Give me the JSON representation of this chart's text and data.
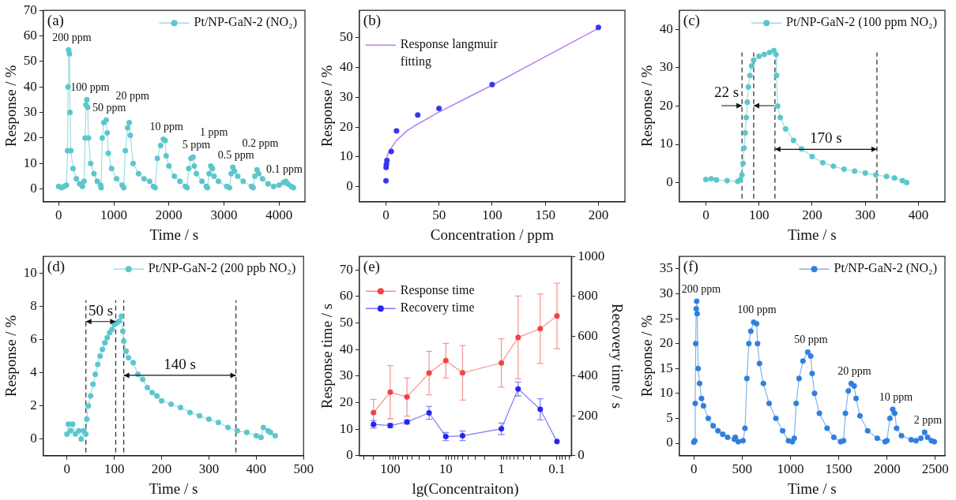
{
  "chart_data": [
    {
      "type": "line",
      "title": "(a)",
      "xlabel": "Time / s",
      "ylabel": "Response / %",
      "xlim": [
        -280,
        4470
      ],
      "ylim": [
        -5,
        70
      ],
      "xticks": [
        0,
        1000,
        2000,
        3000,
        4000
      ],
      "yticks": [
        0,
        10,
        20,
        30,
        40,
        50,
        60,
        70
      ],
      "legend": "top right",
      "marker": "circle",
      "line_style": "solid",
      "series": [
        {
          "name": "Pt/NP-GaN-2 (NO₂)",
          "color": "#5cc6cc",
          "x": [
            0,
            50,
            100,
            140,
            160,
            170,
            180,
            195,
            205,
            220,
            260,
            320,
            380,
            430,
            460,
            480,
            495,
            510,
            525,
            540,
            580,
            640,
            700,
            760,
            770,
            790,
            820,
            860,
            880,
            900,
            960,
            1050,
            1150,
            1180,
            1210,
            1250,
            1280,
            1300,
            1350,
            1450,
            1550,
            1650,
            1720,
            1750,
            1790,
            1850,
            1900,
            1930,
            1950,
            2000,
            2100,
            2200,
            2300,
            2330,
            2360,
            2400,
            2440,
            2460,
            2500,
            2600,
            2680,
            2700,
            2730,
            2760,
            2790,
            2820,
            2900,
            3050,
            3100,
            3130,
            3160,
            3190,
            3250,
            3350,
            3500,
            3530,
            3560,
            3600,
            3630,
            3700,
            3800,
            3900,
            4000,
            4080,
            4120,
            4160,
            4220,
            4260
          ],
          "values": [
            1,
            0.5,
            1,
            1.5,
            15,
            40,
            54.5,
            53,
            30,
            15,
            8,
            4,
            2,
            1,
            3,
            20,
            33,
            35,
            32,
            20,
            10,
            6,
            3,
            1.5,
            0.5,
            20,
            26,
            27,
            22,
            14,
            8,
            4,
            1.5,
            0.5,
            15,
            24,
            26,
            21,
            10,
            6,
            4,
            3,
            1,
            0.5,
            12,
            17,
            19.5,
            19,
            13,
            9,
            5,
            3,
            1,
            0.5,
            8,
            12,
            12.5,
            9,
            6,
            3,
            1,
            0.5,
            6,
            9,
            8,
            5,
            3,
            1,
            0.5,
            6,
            8.5,
            7,
            5,
            3,
            1,
            0.5,
            5,
            7.5,
            6,
            4,
            2,
            1,
            1.5,
            2.5,
            3,
            2,
            1,
            0.5
          ]
        }
      ],
      "annotations": [
        {
          "text": "200 ppm",
          "x": 180,
          "y": 54.5
        },
        {
          "text": "100 ppm",
          "x": 510,
          "y": 35
        },
        {
          "text": "50 ppm",
          "x": 860,
          "y": 27
        },
        {
          "text": "20 ppm",
          "x": 1280,
          "y": 26
        },
        {
          "text": "10 ppm",
          "x": 1900,
          "y": 19.5
        },
        {
          "text": "5 ppm",
          "x": 2440,
          "y": 12.5
        },
        {
          "text": "1 ppm",
          "x": 2760,
          "y": 9
        },
        {
          "text": "0.5 ppm",
          "x": 3160,
          "y": 8.5
        },
        {
          "text": "0.2 ppm",
          "x": 3600,
          "y": 7.5
        },
        {
          "text": "0.1 ppm",
          "x": 4120,
          "y": 3
        }
      ]
    },
    {
      "type": "scatter",
      "title": "(b)",
      "xlabel": "Concentration / ppm",
      "ylabel": "Response / %",
      "xlim": [
        -25,
        225
      ],
      "ylim": [
        -5,
        59
      ],
      "xticks": [
        0,
        50,
        100,
        150,
        200
      ],
      "yticks": [
        0,
        10,
        20,
        30,
        40,
        50
      ],
      "legend": "top left",
      "marker": "circle",
      "series": [
        {
          "color": "#3535f0",
          "x": [
            0.1,
            0.2,
            0.5,
            1,
            5,
            10,
            30,
            50,
            100,
            200
          ],
          "values": [
            2,
            6.5,
            7.5,
            8.8,
            11.8,
            18.7,
            24,
            26.2,
            34.2,
            53.3
          ]
        },
        {
          "name": "Response langmuir fitting",
          "type": "line",
          "marker": "none",
          "color": "#b87ef5",
          "x": [
            1,
            2,
            5,
            10,
            20,
            30,
            50,
            75,
            100,
            150,
            200
          ],
          "values": [
            9.8,
            11.2,
            13,
            15.5,
            18.8,
            21,
            25,
            29.5,
            34,
            43.5,
            53
          ]
        }
      ]
    },
    {
      "type": "line",
      "title": "(c)",
      "xlabel": "Time / s",
      "ylabel": "Response / %",
      "xlim": [
        -50,
        450
      ],
      "ylim": [
        -5,
        45
      ],
      "xticks": [
        0,
        100,
        200,
        300,
        400
      ],
      "yticks": [
        0,
        10,
        20,
        30,
        40
      ],
      "legend": "top right",
      "marker": "circle",
      "line_style": "solid",
      "series": [
        {
          "name": "Pt/NP-GaN-2 (100 ppm NO₂)",
          "color": "#5cc6cc",
          "x": [
            0,
            10,
            20,
            40,
            60,
            65,
            68,
            70,
            72,
            74,
            76,
            78,
            80,
            83,
            86,
            90,
            100,
            110,
            120,
            128,
            132,
            133,
            135,
            140,
            150,
            165,
            180,
            200,
            220,
            240,
            260,
            280,
            300,
            320,
            340,
            355,
            370,
            378
          ],
          "values": [
            0.8,
            1,
            0.7,
            0.5,
            0.3,
            0.8,
            2,
            5,
            9,
            13,
            17,
            21,
            25,
            28,
            30.5,
            32,
            33,
            33.5,
            34,
            34.5,
            33.5,
            28,
            20,
            17,
            14,
            11,
            8.8,
            6.8,
            5.2,
            4.3,
            3.5,
            3,
            2.5,
            2,
            1.6,
            1.2,
            0.5,
            0
          ]
        }
      ],
      "ref_lines": [
        {
          "axis": "x",
          "value": 68,
          "line_style": "dashed",
          "color": "#333333"
        },
        {
          "axis": "x",
          "value": 90,
          "line_style": "dashed",
          "color": "#333333"
        },
        {
          "axis": "x",
          "value": 130,
          "line_style": "dashed",
          "color": "#333333"
        },
        {
          "axis": "x",
          "value": 322,
          "line_style": "dashed",
          "color": "#333333"
        }
      ],
      "annotations": [
        {
          "text": "22 s",
          "x": 68,
          "y": 20.1
        },
        {
          "text": "170 s",
          "x": 130,
          "y": 8.7
        }
      ]
    },
    {
      "type": "line",
      "title": "(d)",
      "xlabel": "Time / s",
      "ylabel": "Response / %",
      "xlim": [
        -50,
        500
      ],
      "ylim": [
        -1,
        11
      ],
      "xticks": [
        0,
        100,
        200,
        300,
        400,
        500
      ],
      "yticks": [
        0,
        2,
        4,
        6,
        8,
        10
      ],
      "legend": "top right",
      "marker": "circle",
      "line_style": "solid",
      "series": [
        {
          "name": "Pt/NP-GaN-2 (200 ppb NO₂)",
          "color": "#5cc6cc",
          "x": [
            0,
            3,
            8,
            12,
            18,
            25,
            30,
            35,
            40,
            42,
            45,
            50,
            55,
            60,
            65,
            70,
            75,
            80,
            85,
            90,
            95,
            100,
            105,
            110,
            115,
            118,
            120,
            125,
            130,
            140,
            150,
            160,
            170,
            180,
            190,
            200,
            220,
            240,
            260,
            280,
            300,
            320,
            340,
            360,
            380,
            400,
            410,
            415,
            425,
            430,
            440
          ],
          "values": [
            0.3,
            0.9,
            0.5,
            0.9,
            0.3,
            0.5,
            0,
            0.5,
            0.3,
            1.2,
            2,
            2.6,
            3.3,
            3.9,
            4.5,
            5,
            5.4,
            5.8,
            6.1,
            6.4,
            6.6,
            6.9,
            7,
            7.1,
            7.4,
            6.5,
            5.9,
            5.3,
            4.9,
            4.6,
            3.9,
            3.6,
            3.1,
            2.8,
            2.6,
            2.3,
            2.1,
            1.9,
            1.6,
            1.4,
            1.2,
            1,
            0.7,
            0.5,
            0.4,
            0.2,
            0.1,
            0.7,
            0.5,
            0.4,
            0.2
          ]
        }
      ],
      "ref_lines": [
        {
          "axis": "x",
          "value": 40,
          "line_style": "dashed",
          "color": "#333333"
        },
        {
          "axis": "x",
          "value": 103,
          "line_style": "dashed",
          "color": "#333333"
        },
        {
          "axis": "x",
          "value": 120,
          "line_style": "dashed",
          "color": "#333333"
        },
        {
          "axis": "x",
          "value": 357,
          "line_style": "dashed",
          "color": "#333333"
        }
      ],
      "annotations": [
        {
          "text": "50 s",
          "x": 40,
          "y": 7.08
        },
        {
          "text": "140 s",
          "x": 120,
          "y": 3.84
        }
      ]
    },
    {
      "type": "line",
      "title": "(e)",
      "xlabel": "lg(Concentraiton)",
      "ylabel": "Response time / s",
      "y2label": "Recovery time / s",
      "log": "x",
      "xlim": [
        360,
        0.055
      ],
      "ylim": [
        0,
        75
      ],
      "y2lim": [
        0,
        1000
      ],
      "xticks": [
        {
          "value": 300,
          "label": null
        },
        {
          "value": 200,
          "label": null
        },
        100,
        {
          "value": 90,
          "label": null
        },
        {
          "value": 80,
          "label": null
        },
        {
          "value": 70,
          "label": null
        },
        {
          "value": 60,
          "label": null
        },
        {
          "value": 50,
          "label": null
        },
        {
          "value": 40,
          "label": null
        },
        {
          "value": 30,
          "label": null
        },
        {
          "value": 20,
          "label": null
        },
        10,
        {
          "value": 9,
          "label": null
        },
        {
          "value": 8,
          "label": null
        },
        {
          "value": 7,
          "label": null
        },
        {
          "value": 6,
          "label": null
        },
        {
          "value": 5,
          "label": null
        },
        {
          "value": 4,
          "label": null
        },
        {
          "value": 3,
          "label": null
        },
        {
          "value": 2,
          "label": null
        },
        1,
        {
          "value": 0.9,
          "label": null
        },
        {
          "value": 0.8,
          "label": null
        },
        {
          "value": 0.7,
          "label": null
        },
        {
          "value": 0.6,
          "label": null
        },
        {
          "value": 0.5,
          "label": null
        },
        {
          "value": 0.4,
          "label": null
        },
        {
          "value": 0.3,
          "label": null
        },
        {
          "value": 0.2,
          "label": null
        },
        0.1,
        {
          "value": 0.09,
          "label": null
        },
        {
          "value": 0.08,
          "label": null
        },
        {
          "value": 0.07,
          "label": null
        },
        {
          "value": 0.06,
          "label": null
        }
      ],
      "yticks": [
        0,
        10,
        20,
        30,
        40,
        50,
        60,
        70
      ],
      "y2ticks": [
        0,
        200,
        400,
        600,
        800,
        1000
      ],
      "legend": "top left",
      "marker": "circle",
      "line_style": "solid",
      "x": [
        200,
        100,
        50,
        20,
        10,
        5,
        1,
        0.5,
        0.2,
        0.1
      ],
      "series": [
        {
          "name": "Response time",
          "color": "#f04444",
          "values": [
            16.2,
            23.9,
            22.1,
            31.1,
            35.8,
            31.2,
            34.9,
            44.5,
            47.8,
            52.6
          ],
          "errors": [
            5,
            10,
            7.2,
            8.2,
            6.5,
            10.3,
            9.1,
            15.6,
            13.1,
            12.3
          ]
        },
        {
          "name": "Recovery time",
          "axis": "y2",
          "color": "#2525f0",
          "values": [
            157,
            151,
            169,
            215,
            96,
            100,
            135,
            335,
            233,
            71
          ],
          "errors": [
            19,
            10,
            10,
            32,
            20,
            24,
            29,
            35,
            53,
            null
          ]
        }
      ]
    },
    {
      "type": "line",
      "title": "(f)",
      "xlabel": "Time / s",
      "ylabel": "Response / %",
      "xlim": [
        -150,
        2600
      ],
      "ylim": [
        -2.5,
        37.5
      ],
      "xticks": [
        0,
        500,
        1000,
        1500,
        2000,
        2500
      ],
      "yticks": [
        0,
        5,
        10,
        15,
        20,
        25,
        30,
        35
      ],
      "legend": "top right",
      "marker": "circle",
      "line_style": "solid",
      "series": [
        {
          "name": "Pt/NP-GaN-2 (NO₂)",
          "color": "#2f7fdf",
          "x": [
            0,
            10,
            15,
            20,
            25,
            30,
            35,
            45,
            60,
            80,
            100,
            150,
            200,
            250,
            300,
            350,
            420,
            430,
            460,
            510,
            530,
            550,
            570,
            590,
            620,
            650,
            660,
            680,
            720,
            780,
            850,
            920,
            980,
            1020,
            1040,
            1060,
            1090,
            1130,
            1180,
            1210,
            1225,
            1250,
            1300,
            1380,
            1450,
            1520,
            1550,
            1570,
            1600,
            1630,
            1660,
            1680,
            1720,
            1800,
            1900,
            1980,
            2000,
            2030,
            2060,
            2080,
            2100,
            2150,
            2250,
            2300,
            2350,
            2390,
            2420,
            2460,
            2490
          ],
          "values": [
            0.2,
            0.5,
            8,
            20,
            27,
            28.5,
            26,
            15,
            12,
            9,
            7.5,
            5,
            3.5,
            2.5,
            1.8,
            1.2,
            0.8,
            1.2,
            0.3,
            0.5,
            3,
            13,
            20,
            22.5,
            24.3,
            24,
            20,
            16,
            12,
            8,
            5,
            2.5,
            0.5,
            0.3,
            1,
            8,
            13,
            16.5,
            18.3,
            17.5,
            14,
            10,
            6,
            3,
            1.2,
            0.3,
            0.5,
            6,
            10.5,
            12,
            11.5,
            9,
            5.5,
            2.5,
            1,
            0.3,
            0.5,
            5,
            6.8,
            6,
            3,
            1.5,
            0.7,
            0.5,
            1,
            2.2,
            1.2,
            0.5,
            0.3
          ]
        }
      ],
      "annotations": [
        {
          "text": "200 ppm",
          "x": 30,
          "y": 28.5
        },
        {
          "text": "100 ppm",
          "x": 620,
          "y": 24.3
        },
        {
          "text": "50 ppm",
          "x": 1180,
          "y": 18.3
        },
        {
          "text": "20 ppm",
          "x": 1630,
          "y": 12
        },
        {
          "text": "10 ppm",
          "x": 2060,
          "y": 6.8
        },
        {
          "text": "2 ppm",
          "x": 2390,
          "y": 2.2
        }
      ]
    }
  ]
}
